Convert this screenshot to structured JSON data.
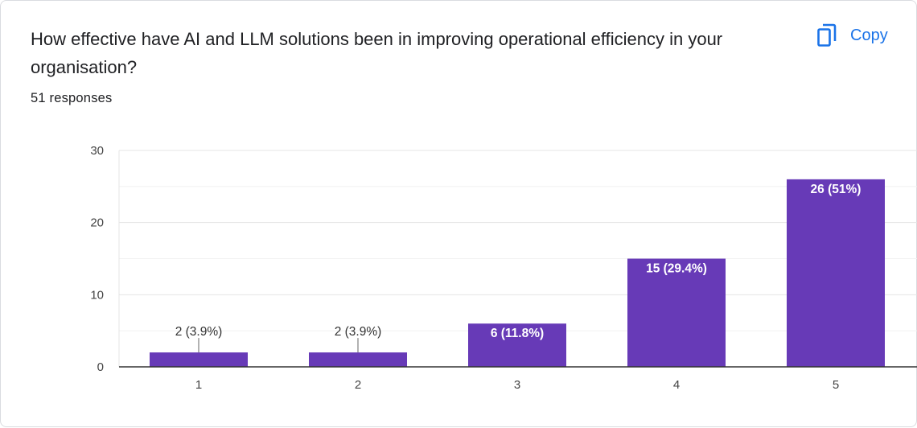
{
  "question": {
    "title": "How effective have AI and LLM solutions been in improving operational efficiency in your organisation?",
    "responses": "51 responses"
  },
  "toolbar": {
    "copy_label": "Copy",
    "copy_icon": "copy-icon"
  },
  "colors": {
    "bar": "#673ab7",
    "accent": "#1a73e8",
    "grid": "#e9e9e9",
    "axis": "#333333"
  },
  "chart_data": {
    "type": "bar",
    "categories": [
      "1",
      "2",
      "3",
      "4",
      "5"
    ],
    "values": [
      2,
      2,
      6,
      15,
      26
    ],
    "data_labels": [
      "2 (3.9%)",
      "2 (3.9%)",
      "6 (11.8%)",
      "15 (29.4%)",
      "26 (51%)"
    ],
    "title": "",
    "xlabel": "",
    "ylabel": "",
    "ylim": [
      0,
      30
    ],
    "yticks": [
      0,
      10,
      20,
      30
    ],
    "minor_gridlines": true,
    "legend": "none"
  }
}
